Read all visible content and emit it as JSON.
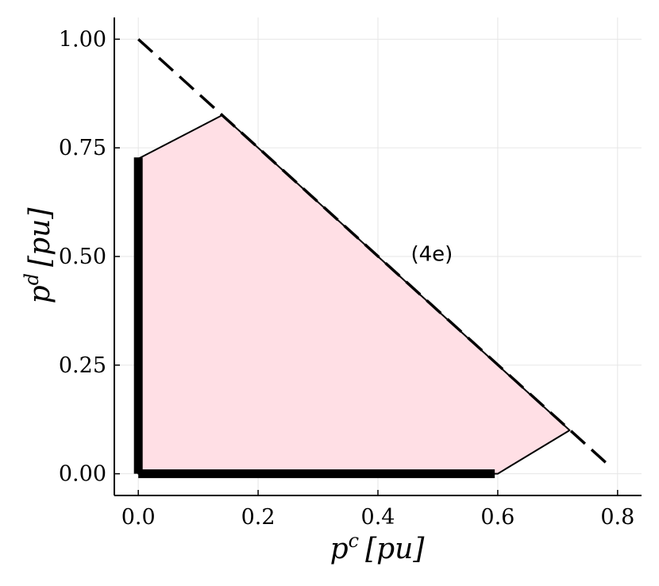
{
  "chart_data": {
    "type": "area",
    "x_axis": {
      "label_base": "p",
      "label_sup": "c",
      "label_unit": "[pu]",
      "range": [
        -0.04,
        0.84
      ],
      "ticks": [
        0.0,
        0.2,
        0.4,
        0.6,
        0.8
      ],
      "tick_labels": [
        "0.0",
        "0.2",
        "0.4",
        "0.6",
        "0.8"
      ]
    },
    "y_axis": {
      "label_base": "p",
      "label_sup": "d",
      "label_unit": "[pu]",
      "range": [
        -0.05,
        1.05
      ],
      "ticks": [
        0.0,
        0.25,
        0.5,
        0.75,
        1.0
      ],
      "tick_labels": [
        "0.00",
        "0.25",
        "0.50",
        "0.75",
        "1.00"
      ]
    },
    "grid": true,
    "legend": "none",
    "feasible_region": {
      "fill_color": "#ffdfe5",
      "edge_color": "#000000",
      "vertices": [
        {
          "x": 0.0,
          "y": 0.0
        },
        {
          "x": 0.0,
          "y": 0.725
        },
        {
          "x": 0.14,
          "y": 0.825
        },
        {
          "x": 0.72,
          "y": 0.1
        },
        {
          "x": 0.6,
          "y": 0.0
        }
      ]
    },
    "constraint_line": {
      "style": "dashed",
      "color": "#000000",
      "points": [
        {
          "x": 0.0,
          "y": 1.0
        },
        {
          "x": 0.785,
          "y": 0.02
        }
      ]
    },
    "thick_segments": [
      {
        "name": "vertical-bound",
        "points": [
          {
            "x": 0.0,
            "y": 0.0
          },
          {
            "x": 0.0,
            "y": 0.728
          }
        ]
      },
      {
        "name": "horizontal-bound",
        "points": [
          {
            "x": 0.0,
            "y": 0.0
          },
          {
            "x": 0.595,
            "y": 0.0
          }
        ]
      }
    ],
    "annotations": [
      {
        "text": "(4e)",
        "x": 0.49,
        "y": 0.49
      }
    ]
  }
}
